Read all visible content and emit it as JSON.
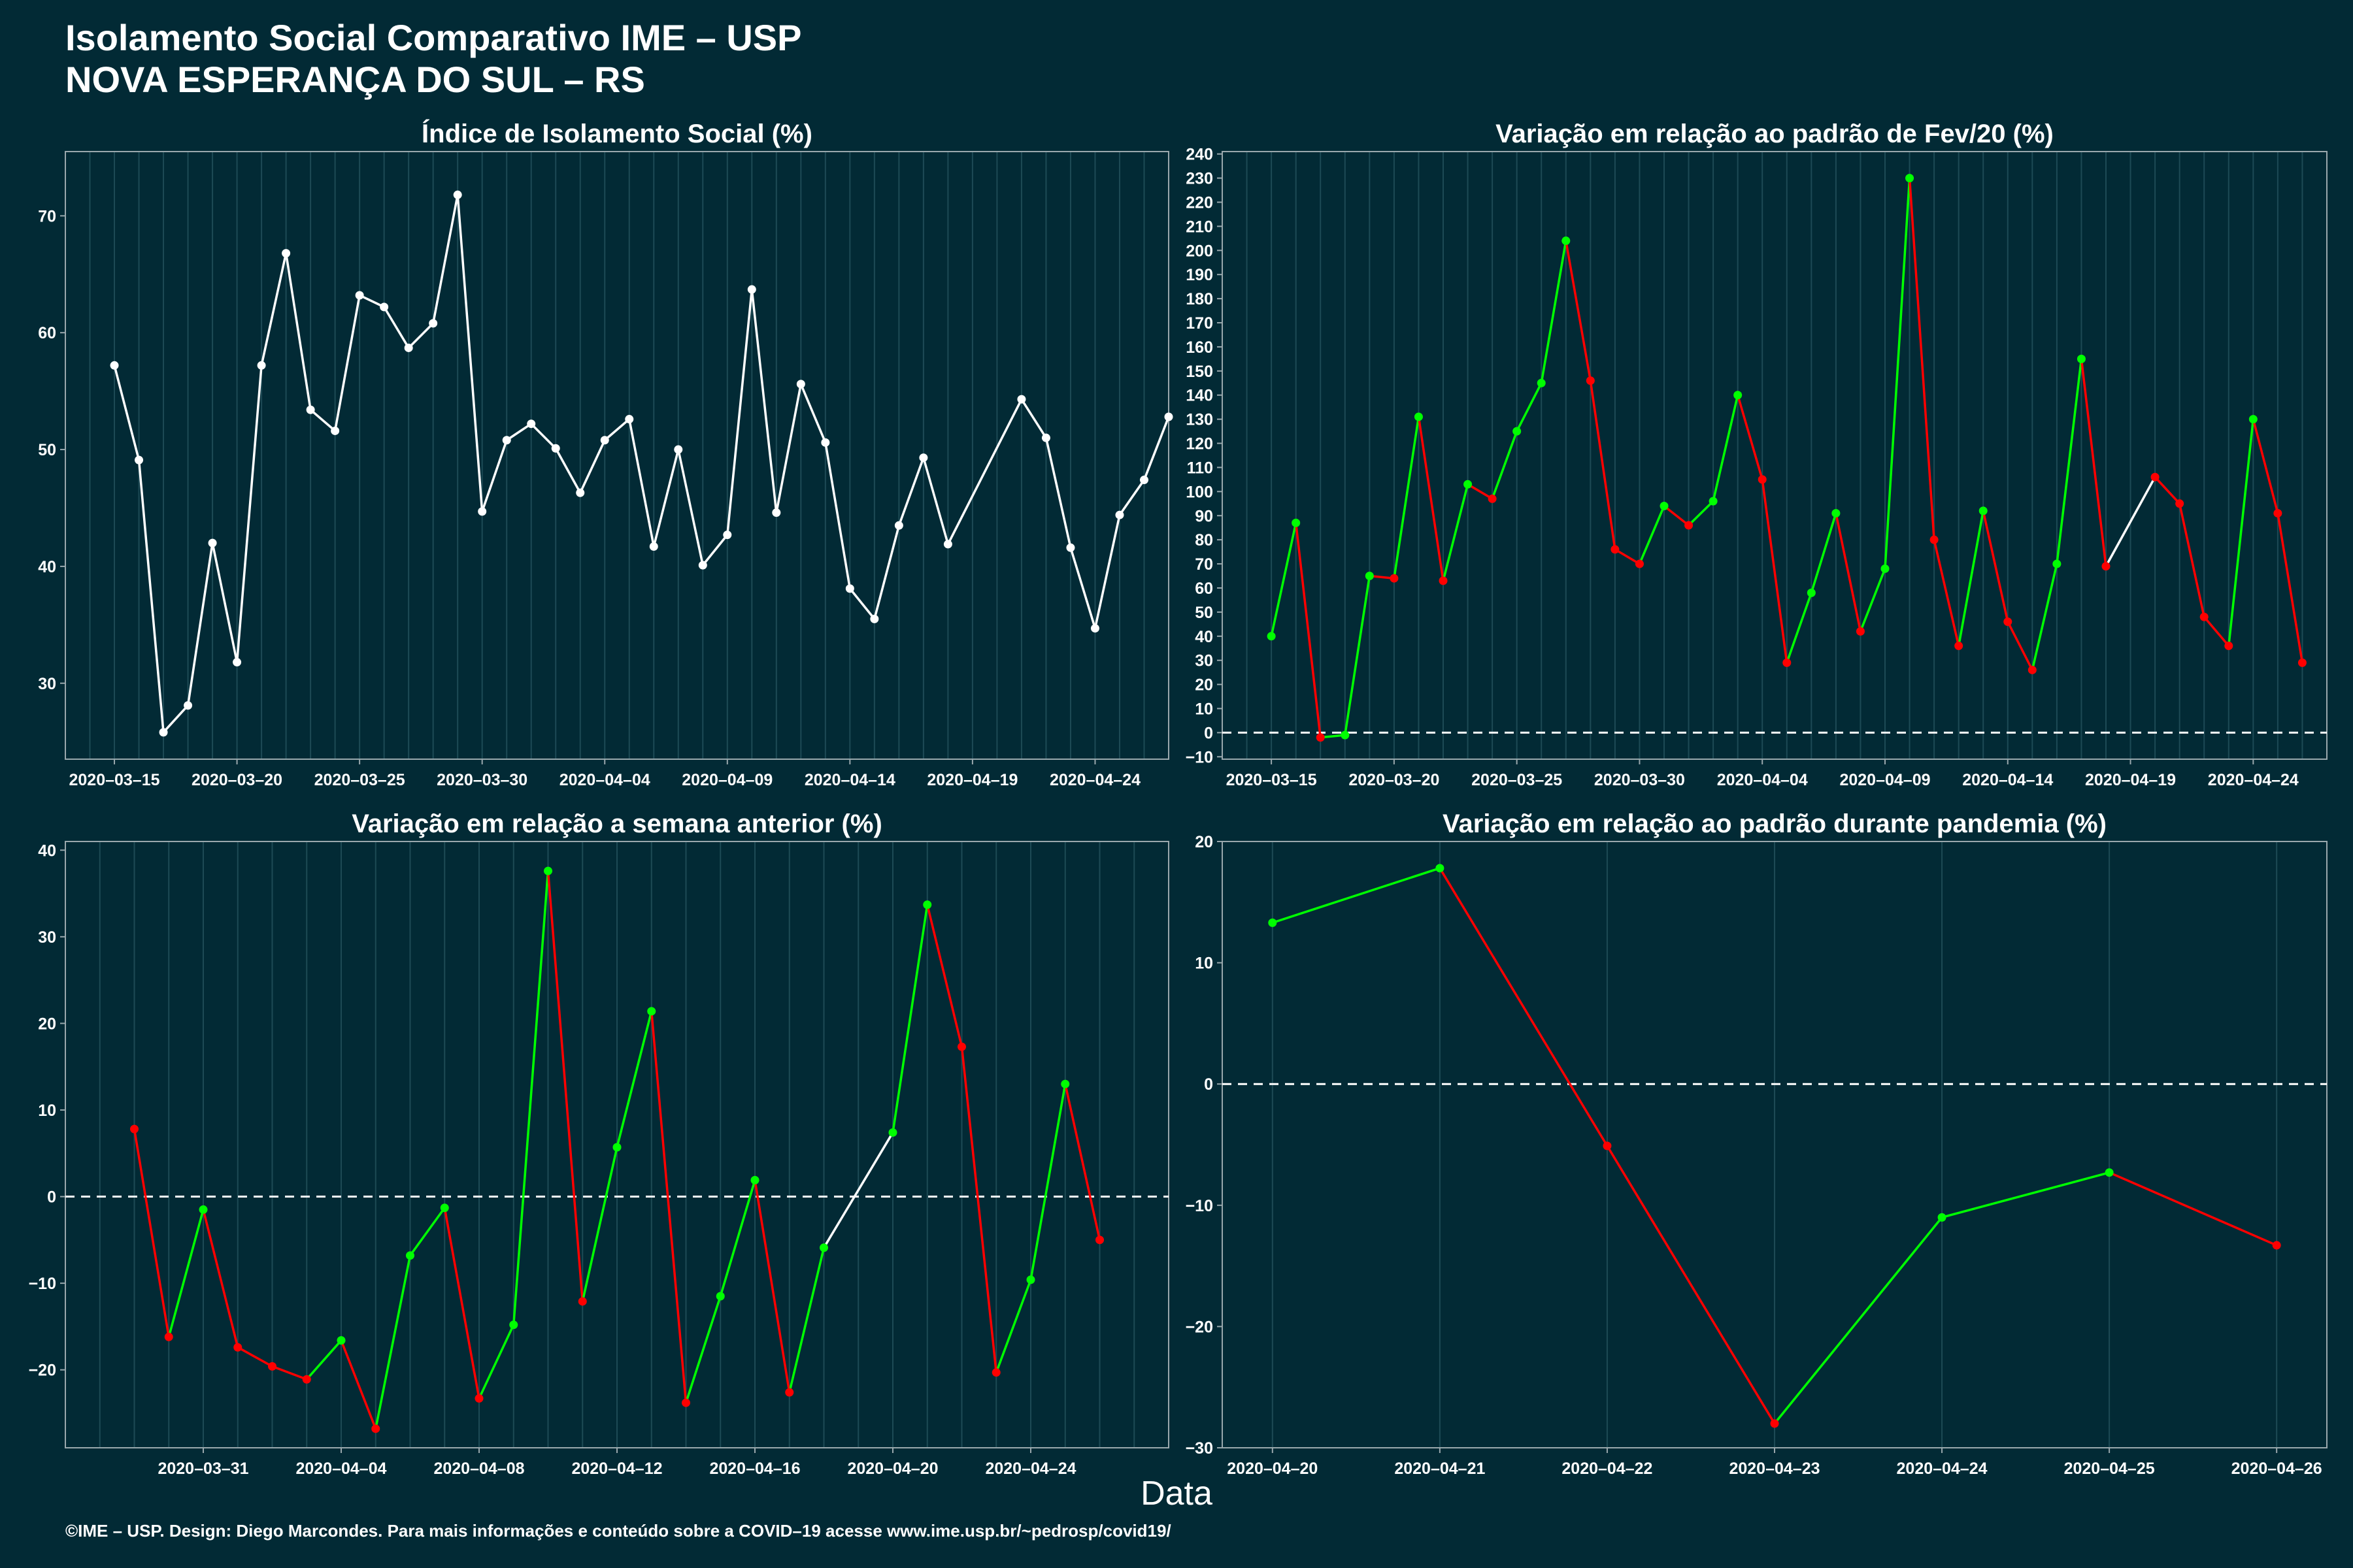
{
  "header": {
    "title_line1": "Isolamento Social Comparativo IME – USP",
    "title_line2": "NOVA ESPERANÇA DO SUL – RS"
  },
  "xlabel": "Data",
  "footer": "©IME – USP. Design: Diego Marcondes. Para mais informações e conteúdo sobre a COVID–19 acesse www.ime.usp.br/~pedrosp/covid19/",
  "colors": {
    "background": "#022a35",
    "line_white": "#ffffff",
    "increase_green": "#00ff00",
    "decrease_red": "#ff0000",
    "grid": "#1d4a55"
  },
  "chart_data": [
    {
      "id": "indice",
      "type": "line",
      "title": "Índice de Isolamento Social (%)",
      "x_type": "date",
      "xlim": [
        "2020-03-13",
        "2020-04-27"
      ],
      "ylim": [
        23.5,
        75.5
      ],
      "xticks": [
        "2020-03-15",
        "2020-03-20",
        "2020-03-25",
        "2020-03-30",
        "2020-04-04",
        "2020-04-09",
        "2020-04-14",
        "2020-04-19",
        "2020-04-24"
      ],
      "xtick_labels": [
        "2020–03–15",
        "2020–03–20",
        "2020–03–25",
        "2020–03–30",
        "2020–04–04",
        "2020–04–09",
        "2020–04–14",
        "2020–04–19",
        "2020–04–24"
      ],
      "yticks": [
        30,
        40,
        50,
        60,
        70
      ],
      "ytick_labels": [
        "30",
        "40",
        "50",
        "60",
        "70"
      ],
      "zero_line": false,
      "x_start": "2020-03-15",
      "points": [
        {
          "x": "2020-03-15",
          "y": 57.2
        },
        {
          "x": "2020-03-16",
          "y": 49.1
        },
        {
          "x": "2020-03-17",
          "y": 25.8
        },
        {
          "x": "2020-03-18",
          "y": 28.1
        },
        {
          "x": "2020-03-19",
          "y": 42.0
        },
        {
          "x": "2020-03-20",
          "y": 31.8
        },
        {
          "x": "2020-03-21",
          "y": 57.2
        },
        {
          "x": "2020-03-22",
          "y": 66.8
        },
        {
          "x": "2020-03-23",
          "y": 53.4
        },
        {
          "x": "2020-03-24",
          "y": 51.6
        },
        {
          "x": "2020-03-25",
          "y": 63.2
        },
        {
          "x": "2020-03-26",
          "y": 62.2
        },
        {
          "x": "2020-03-27",
          "y": 58.7
        },
        {
          "x": "2020-03-28",
          "y": 60.8
        },
        {
          "x": "2020-03-29",
          "y": 71.8
        },
        {
          "x": "2020-03-30",
          "y": 44.7
        },
        {
          "x": "2020-03-31",
          "y": 50.8
        },
        {
          "x": "2020-04-01",
          "y": 52.2
        },
        {
          "x": "2020-04-02",
          "y": 50.1
        },
        {
          "x": "2020-04-03",
          "y": 46.3
        },
        {
          "x": "2020-04-04",
          "y": 50.8
        },
        {
          "x": "2020-04-05",
          "y": 52.6
        },
        {
          "x": "2020-04-06",
          "y": 41.7
        },
        {
          "x": "2020-04-07",
          "y": 50.0
        },
        {
          "x": "2020-04-08",
          "y": 40.1
        },
        {
          "x": "2020-04-09",
          "y": 42.7
        },
        {
          "x": "2020-04-10",
          "y": 63.7
        },
        {
          "x": "2020-04-11",
          "y": 44.6
        },
        {
          "x": "2020-04-12",
          "y": 55.6
        },
        {
          "x": "2020-04-13",
          "y": 50.6
        },
        {
          "x": "2020-04-14",
          "y": 38.1
        },
        {
          "x": "2020-04-15",
          "y": 35.5
        },
        {
          "x": "2020-04-16",
          "y": 43.5
        },
        {
          "x": "2020-04-17",
          "y": 49.3
        },
        {
          "x": "2020-04-18",
          "y": 41.9
        },
        {
          "x": "2020-04-21",
          "y": 54.3
        },
        {
          "x": "2020-04-22",
          "y": 51.0
        },
        {
          "x": "2020-04-23",
          "y": 41.6
        },
        {
          "x": "2020-04-24",
          "y": 34.7
        },
        {
          "x": "2020-04-25",
          "y": 44.4
        },
        {
          "x": "2020-04-26",
          "y": 47.4
        },
        {
          "x": "2020-04-27",
          "y": 52.8
        }
      ]
    },
    {
      "id": "fev20",
      "type": "line",
      "title": "Variação em relação ao padrão de Fev/20 (%)",
      "x_type": "date",
      "xlim": [
        "2020-03-13",
        "2020-04-27"
      ],
      "ylim": [
        -11,
        241
      ],
      "xticks": [
        "2020-03-15",
        "2020-03-20",
        "2020-03-25",
        "2020-03-30",
        "2020-04-04",
        "2020-04-09",
        "2020-04-14",
        "2020-04-19",
        "2020-04-24"
      ],
      "xtick_labels": [
        "2020–03–15",
        "2020–03–20",
        "2020–03–25",
        "2020–03–30",
        "2020–04–04",
        "2020–04–09",
        "2020–04–14",
        "2020–04–19",
        "2020–04–24"
      ],
      "yticks": [
        -10,
        0,
        10,
        20,
        30,
        40,
        50,
        60,
        70,
        80,
        90,
        100,
        110,
        120,
        130,
        140,
        150,
        160,
        170,
        180,
        190,
        200,
        210,
        220,
        230,
        240
      ],
      "ytick_labels": [
        "−10",
        "0",
        "10",
        "20",
        "30",
        "40",
        "50",
        "60",
        "70",
        "80",
        "90",
        "100",
        "110",
        "120",
        "130",
        "140",
        "150",
        "160",
        "170",
        "180",
        "190",
        "200",
        "210",
        "220",
        "230",
        "240"
      ],
      "zero_line": true,
      "x_start": "2020-03-15",
      "points": [
        {
          "x": "2020-03-15",
          "y": 40
        },
        {
          "x": "2020-03-16",
          "y": 87
        },
        {
          "x": "2020-03-17",
          "y": -2
        },
        {
          "x": "2020-03-18",
          "y": -1
        },
        {
          "x": "2020-03-19",
          "y": 65
        },
        {
          "x": "2020-03-20",
          "y": 64
        },
        {
          "x": "2020-03-21",
          "y": 131
        },
        {
          "x": "2020-03-22",
          "y": 63
        },
        {
          "x": "2020-03-23",
          "y": 103
        },
        {
          "x": "2020-03-24",
          "y": 97
        },
        {
          "x": "2020-03-25",
          "y": 125
        },
        {
          "x": "2020-03-26",
          "y": 145
        },
        {
          "x": "2020-03-27",
          "y": 204
        },
        {
          "x": "2020-03-28",
          "y": 146
        },
        {
          "x": "2020-03-29",
          "y": 76
        },
        {
          "x": "2020-03-30",
          "y": 70
        },
        {
          "x": "2020-03-31",
          "y": 94
        },
        {
          "x": "2020-04-01",
          "y": 86
        },
        {
          "x": "2020-04-02",
          "y": 96
        },
        {
          "x": "2020-04-03",
          "y": 140
        },
        {
          "x": "2020-04-04",
          "y": 105
        },
        {
          "x": "2020-04-05",
          "y": 29
        },
        {
          "x": "2020-04-06",
          "y": 58
        },
        {
          "x": "2020-04-07",
          "y": 91
        },
        {
          "x": "2020-04-08",
          "y": 42
        },
        {
          "x": "2020-04-09",
          "y": 68
        },
        {
          "x": "2020-04-10",
          "y": 230
        },
        {
          "x": "2020-04-11",
          "y": 80
        },
        {
          "x": "2020-04-12",
          "y": 36
        },
        {
          "x": "2020-04-13",
          "y": 92
        },
        {
          "x": "2020-04-14",
          "y": 46
        },
        {
          "x": "2020-04-15",
          "y": 26
        },
        {
          "x": "2020-04-16",
          "y": 70
        },
        {
          "x": "2020-04-17",
          "y": 155
        },
        {
          "x": "2020-04-18",
          "y": 69
        },
        {
          "x": "2020-04-20",
          "y": 106
        },
        {
          "x": "2020-04-21",
          "y": 95
        },
        {
          "x": "2020-04-22",
          "y": 48
        },
        {
          "x": "2020-04-23",
          "y": 36
        },
        {
          "x": "2020-04-24",
          "y": 130
        },
        {
          "x": "2020-04-25",
          "y": 91
        },
        {
          "x": "2020-04-26",
          "y": 29
        }
      ]
    },
    {
      "id": "semana",
      "type": "line",
      "title": "Variação em relação a semana anterior (%)",
      "x_type": "date",
      "xlim": [
        "2020-03-27",
        "2020-04-28"
      ],
      "ylim": [
        -29,
        41
      ],
      "xticks": [
        "2020-03-31",
        "2020-04-04",
        "2020-04-08",
        "2020-04-12",
        "2020-04-16",
        "2020-04-20",
        "2020-04-24"
      ],
      "xtick_labels": [
        "2020–03–31",
        "2020–04–04",
        "2020–04–08",
        "2020–04–12",
        "2020–04–16",
        "2020–04–20",
        "2020–04–24"
      ],
      "yticks": [
        -20,
        -10,
        0,
        10,
        20,
        30,
        40
      ],
      "ytick_labels": [
        "−20",
        "−10",
        "0",
        "10",
        "20",
        "30",
        "40"
      ],
      "zero_line": true,
      "x_start": "2020-03-29",
      "points": [
        {
          "x": "2020-03-29",
          "y": 7.8
        },
        {
          "x": "2020-03-30",
          "y": -16.2
        },
        {
          "x": "2020-03-31",
          "y": -1.5
        },
        {
          "x": "2020-04-01",
          "y": -17.4
        },
        {
          "x": "2020-04-02",
          "y": -19.6
        },
        {
          "x": "2020-04-03",
          "y": -21.1
        },
        {
          "x": "2020-04-04",
          "y": -16.6
        },
        {
          "x": "2020-04-05",
          "y": -26.8
        },
        {
          "x": "2020-04-06",
          "y": -6.8
        },
        {
          "x": "2020-04-07",
          "y": -1.3
        },
        {
          "x": "2020-04-08",
          "y": -23.3
        },
        {
          "x": "2020-04-09",
          "y": -14.8
        },
        {
          "x": "2020-04-10",
          "y": 37.6
        },
        {
          "x": "2020-04-11",
          "y": -12.1
        },
        {
          "x": "2020-04-12",
          "y": 5.7
        },
        {
          "x": "2020-04-13",
          "y": 21.4
        },
        {
          "x": "2020-04-14",
          "y": -23.8
        },
        {
          "x": "2020-04-15",
          "y": -11.5
        },
        {
          "x": "2020-04-16",
          "y": 1.9
        },
        {
          "x": "2020-04-17",
          "y": -22.6
        },
        {
          "x": "2020-04-18",
          "y": -5.9
        },
        {
          "x": "2020-04-20",
          "y": 7.4
        },
        {
          "x": "2020-04-21",
          "y": 33.7
        },
        {
          "x": "2020-04-22",
          "y": 17.3
        },
        {
          "x": "2020-04-23",
          "y": -20.3
        },
        {
          "x": "2020-04-24",
          "y": -9.6
        },
        {
          "x": "2020-04-25",
          "y": 13.0
        },
        {
          "x": "2020-04-26",
          "y": -5.0
        }
      ]
    },
    {
      "id": "pandemia",
      "type": "line",
      "title": "Variação em relação ao padrão durante pandemia (%)",
      "x_type": "date",
      "xlim": [
        "2020-04-19.7",
        "2020-04-26.3"
      ],
      "ylim": [
        -30,
        20
      ],
      "xticks": [
        "2020-04-20",
        "2020-04-21",
        "2020-04-22",
        "2020-04-23",
        "2020-04-24",
        "2020-04-25",
        "2020-04-26"
      ],
      "xtick_labels": [
        "2020–04–20",
        "2020–04–21",
        "2020–04–22",
        "2020–04–23",
        "2020–04–24",
        "2020–04–25",
        "2020–04–26"
      ],
      "yticks": [
        -30,
        -20,
        -10,
        0,
        10,
        20
      ],
      "ytick_labels": [
        "−30",
        "−20",
        "−10",
        "0",
        "10",
        "20"
      ],
      "zero_line": true,
      "x_start": "2020-04-20",
      "points": [
        {
          "x": "2020-04-20",
          "y": 13.3
        },
        {
          "x": "2020-04-21",
          "y": 17.8
        },
        {
          "x": "2020-04-22",
          "y": -5.1
        },
        {
          "x": "2020-04-23",
          "y": -28.0
        },
        {
          "x": "2020-04-24",
          "y": -11.0
        },
        {
          "x": "2020-04-25",
          "y": -7.3
        },
        {
          "x": "2020-04-26",
          "y": -13.3
        }
      ]
    }
  ]
}
